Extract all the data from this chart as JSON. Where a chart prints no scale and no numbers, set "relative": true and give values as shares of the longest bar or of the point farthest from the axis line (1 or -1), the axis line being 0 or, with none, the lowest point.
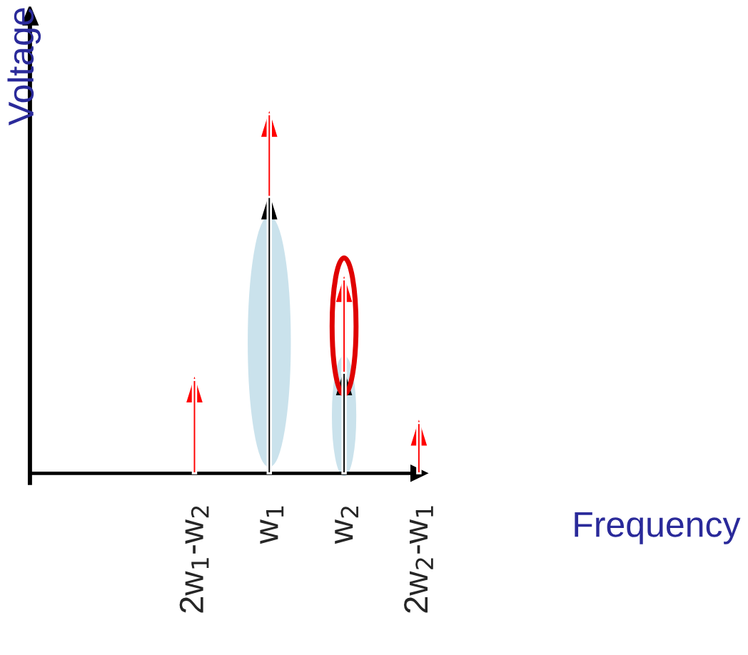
{
  "chart_data": {
    "type": "bar",
    "relative": true,
    "stacked": true,
    "xlabel": "Frequency",
    "ylabel": "Voltage",
    "categories": [
      "2w$_{1}$-w$_{2}$",
      "w$_{1}$",
      "w$_{2}$",
      "2w$_{2}$-w$_{1}$"
    ],
    "series": [
      {
        "color": "#000000",
        "values": [
          null,
          0.77,
          0.28,
          null
        ]
      },
      {
        "color": "#ff0000",
        "values": [
          0.26,
          0.23,
          0.26,
          0.14
        ]
      }
    ],
    "grid": false,
    "legend": false
  }
}
